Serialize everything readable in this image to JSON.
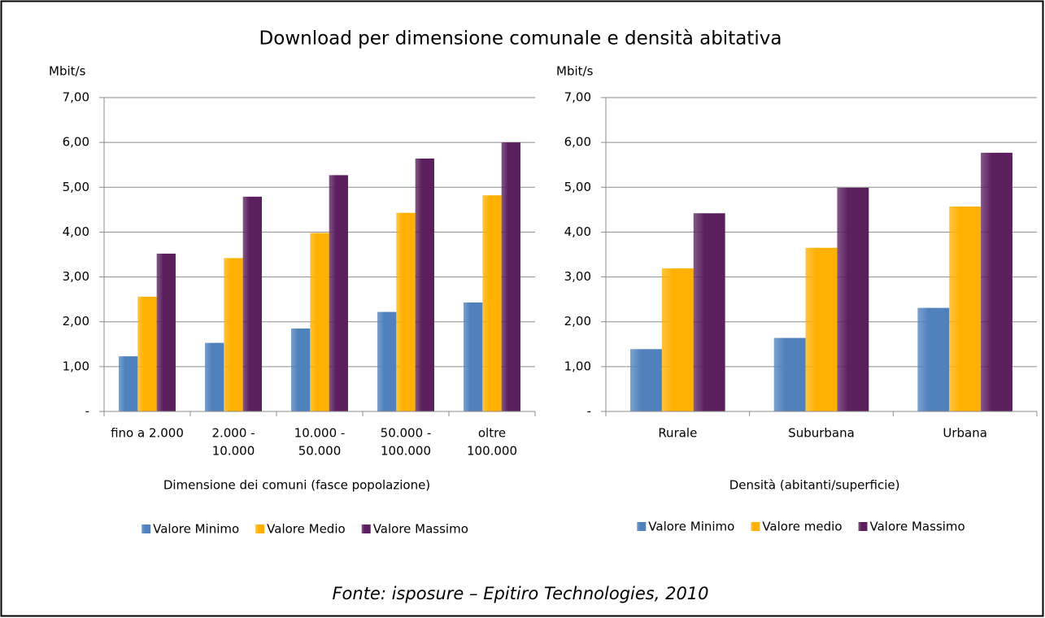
{
  "title": "Download per dimensione comunale e densità abitativa",
  "source": "Fonte: isposure – Epitiro Technologies, 2010",
  "chart_data": [
    {
      "type": "bar",
      "y_label": "Mbit/s",
      "x_label": "Dimensione dei comuni (fasce popolazione)",
      "categories": [
        [
          "fino a 2.000"
        ],
        [
          "2.000 -",
          "10.000"
        ],
        [
          "10.000 -",
          "50.000"
        ],
        [
          "50.000 -",
          "100.000"
        ],
        [
          "oltre",
          "100.000"
        ]
      ],
      "series": [
        {
          "name": "Valore Minimo",
          "color": "#4f81bd",
          "values": [
            1.23,
            1.53,
            1.85,
            2.22,
            2.43
          ]
        },
        {
          "name": "Valore Medio",
          "color": "#ffb000",
          "values": [
            2.56,
            3.42,
            3.98,
            4.43,
            4.82
          ]
        },
        {
          "name": "Valore Massimo",
          "color": "#5b1f5e",
          "values": [
            3.52,
            4.79,
            5.27,
            5.64,
            6.0
          ]
        }
      ],
      "ylim": [
        0,
        7
      ],
      "yticks": [
        {
          "value": 0,
          "label": "-"
        },
        {
          "value": 1,
          "label": "1,00"
        },
        {
          "value": 2,
          "label": "2,00"
        },
        {
          "value": 3,
          "label": "3,00"
        },
        {
          "value": 4,
          "label": "4,00"
        },
        {
          "value": 5,
          "label": "5,00"
        },
        {
          "value": 6,
          "label": "6,00"
        },
        {
          "value": 7,
          "label": "7,00"
        }
      ],
      "grid": true,
      "legend": "bottom"
    },
    {
      "type": "bar",
      "y_label": "Mbit/s",
      "x_label": "Densità (abitanti/superficie)",
      "categories": [
        [
          "Rurale"
        ],
        [
          "Suburbana"
        ],
        [
          "Urbana"
        ]
      ],
      "series": [
        {
          "name": "Valore Minimo",
          "color": "#4f81bd",
          "values": [
            1.39,
            1.64,
            2.31
          ]
        },
        {
          "name": "Valore medio",
          "color": "#ffb000",
          "values": [
            3.19,
            3.65,
            4.57
          ]
        },
        {
          "name": "Valore Massimo",
          "color": "#5b1f5e",
          "values": [
            4.42,
            4.99,
            5.77
          ]
        }
      ],
      "ylim": [
        0,
        7
      ],
      "yticks": [
        {
          "value": 0,
          "label": "-"
        },
        {
          "value": 1,
          "label": "1,00"
        },
        {
          "value": 2,
          "label": "2,00"
        },
        {
          "value": 3,
          "label": "3,00"
        },
        {
          "value": 4,
          "label": "4,00"
        },
        {
          "value": 5,
          "label": "5,00"
        },
        {
          "value": 6,
          "label": "6,00"
        },
        {
          "value": 7,
          "label": "7,00"
        }
      ],
      "grid": true,
      "legend": "bottom"
    }
  ]
}
